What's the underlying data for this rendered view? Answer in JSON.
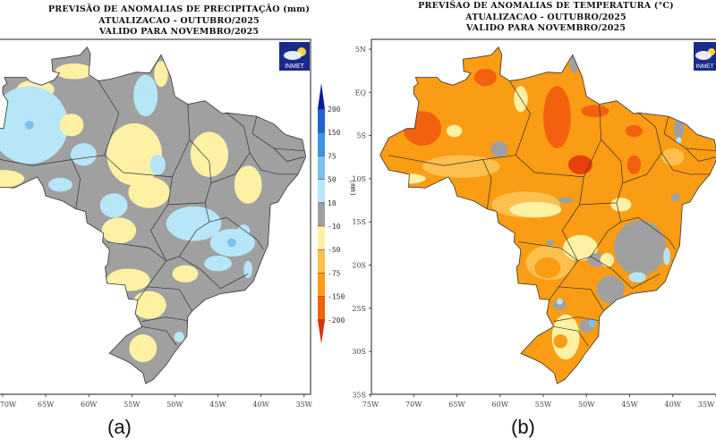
{
  "panel_a": {
    "title_lines": [
      "PREVISÃO DE ANOMALIAS DE PRECIPITAÇÃO (mm)",
      "ATUALIZACAO - OUTUBRO/2025",
      "VALIDO PARA NOVEMBRO/2025"
    ],
    "lon_labels": [
      "70W",
      "65W",
      "60W",
      "55W",
      "50W",
      "45W",
      "40W",
      "35W"
    ],
    "legend": {
      "unit": "(mm)",
      "labels": [
        "200",
        "150",
        "75",
        "50",
        "10",
        "-10",
        "-50",
        "-75",
        "-150",
        "-200"
      ],
      "colors": [
        "#0b1c9c",
        "#1f62d0",
        "#3d94e4",
        "#7cc0f0",
        "#b6e6f8",
        "#a0a0a0",
        "#fff1a4",
        "#fcc04e",
        "#fa9c14",
        "#f2620e",
        "#d83204"
      ]
    },
    "logo_text": "INMET",
    "panel_label": "(a)"
  },
  "panel_b": {
    "title_lines": [
      "PREVIŠAO DE ANOMALIAS DE TEMPERATURA (°C)",
      "ATUALIZACAO - OUTUBRO/2025",
      "VALIDO PARA NOVEMBRO/2025"
    ],
    "lon_labels": [
      "75W",
      "70W",
      "65W",
      "60W",
      "55W",
      "50W",
      "45W",
      "40W",
      "35W"
    ],
    "lat_labels": [
      "5N",
      "EQ",
      "5S",
      "10S",
      "15S",
      "20S",
      "25S",
      "30S",
      "35S"
    ],
    "logo_text": "INMET",
    "panel_label": "(b)"
  },
  "colors": {
    "gray": "#a0a0a0",
    "yellow": "#fff1a4",
    "light_orange": "#fcc04e",
    "orange": "#fa9c14",
    "red_orange": "#f2620e",
    "deep_red": "#e8400a",
    "light_blue": "#b6e6f8",
    "blue": "#7cc0f0",
    "mid_blue": "#3d94e4",
    "logo_bg": "#1a2a8a"
  }
}
